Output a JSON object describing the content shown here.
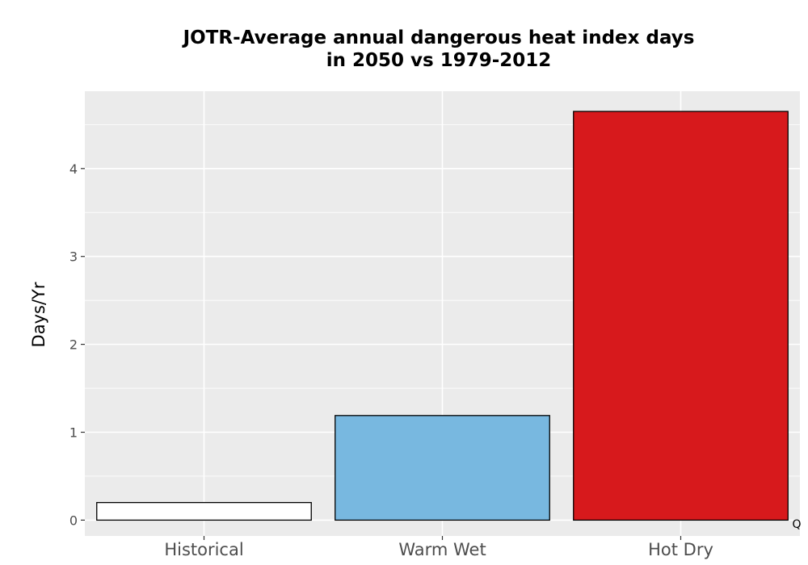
{
  "chart_data": {
    "type": "bar",
    "title_lines": [
      "JOTR-Average annual dangerous heat index days",
      "in 2050 vs 1979-2012"
    ],
    "ylabel": "Days/Yr",
    "xlabel": "",
    "categories": [
      "Historical",
      "Warm Wet",
      "Hot Dry"
    ],
    "values": [
      0.2,
      1.19,
      4.65
    ],
    "colors": [
      "#ffffff",
      "#78b8e0",
      "#d7191c"
    ],
    "bar_outline": "#000000",
    "ylim": [
      -0.18,
      4.88
    ],
    "yticks": [
      0,
      1,
      2,
      3,
      4
    ],
    "ytick_labels": [
      "0",
      "1",
      "2",
      "3",
      "4"
    ],
    "grid": true,
    "panel_background": "#ebebeb",
    "grid_color": "#ffffff",
    "corner_mark": "Q"
  }
}
